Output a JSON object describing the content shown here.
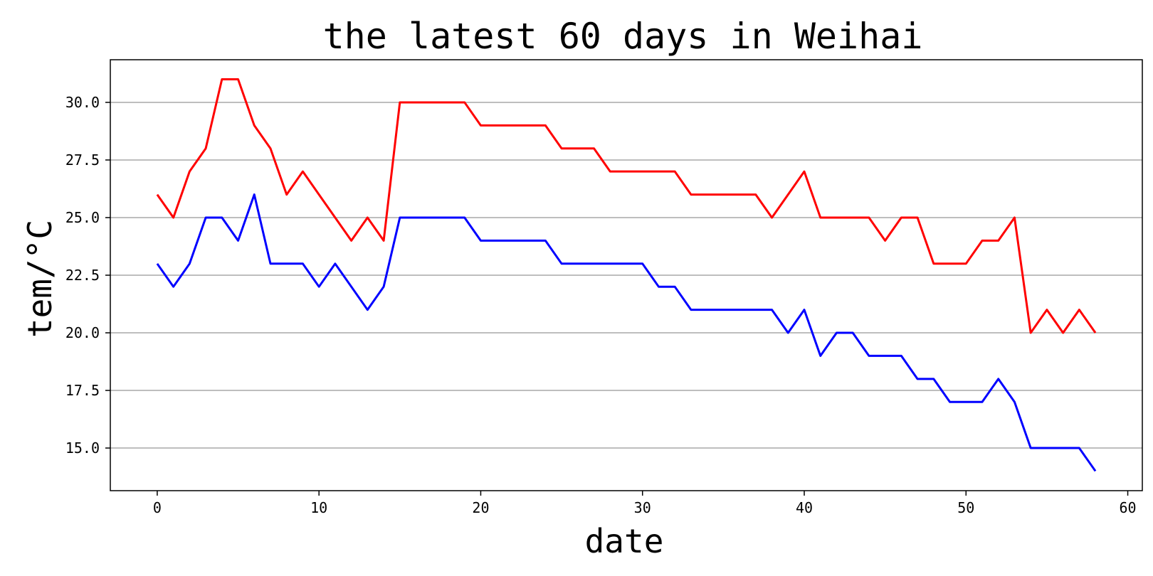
{
  "chart_data": {
    "type": "line",
    "title": "the latest 60 days in Weihai",
    "xlabel": "date",
    "ylabel": "tem/°C",
    "xlim": [
      -2.9,
      60.9
    ],
    "ylim": [
      13.15,
      31.85
    ],
    "x_ticks": [
      0,
      10,
      20,
      30,
      40,
      50,
      60
    ],
    "y_ticks": [
      15.0,
      17.5,
      20.0,
      22.5,
      25.0,
      27.5,
      30.0
    ],
    "x_tick_labels": [
      "0",
      "10",
      "20",
      "30",
      "40",
      "50",
      "60"
    ],
    "y_tick_labels": [
      "15.0",
      "17.5",
      "20.0",
      "22.5",
      "25.0",
      "27.5",
      "30.0"
    ],
    "grid": "y-major",
    "legend": "none",
    "x": [
      0,
      1,
      2,
      3,
      4,
      5,
      6,
      7,
      8,
      9,
      10,
      11,
      12,
      13,
      14,
      15,
      16,
      17,
      18,
      19,
      20,
      21,
      22,
      23,
      24,
      25,
      26,
      27,
      28,
      29,
      30,
      31,
      32,
      33,
      34,
      35,
      36,
      37,
      38,
      39,
      40,
      41,
      42,
      43,
      44,
      45,
      46,
      47,
      48,
      49,
      50,
      51,
      52,
      53,
      54,
      55,
      56,
      57,
      58
    ],
    "series": [
      {
        "color": "#ff0000",
        "values": [
          26,
          25,
          27,
          28,
          31,
          31,
          29,
          28,
          26,
          27,
          26,
          25,
          24,
          25,
          24,
          30,
          30,
          30,
          30,
          30,
          29,
          29,
          29,
          29,
          29,
          28,
          28,
          28,
          27,
          27,
          27,
          27,
          27,
          26,
          26,
          26,
          26,
          26,
          25,
          26,
          27,
          25,
          25,
          25,
          25,
          24,
          25,
          25,
          23,
          23,
          23,
          24,
          24,
          25,
          20,
          21,
          20,
          21,
          20
        ]
      },
      {
        "color": "#0000ff",
        "values": [
          23,
          22,
          23,
          25,
          25,
          24,
          26,
          23,
          23,
          23,
          22,
          23,
          22,
          21,
          22,
          25,
          25,
          25,
          25,
          25,
          24,
          24,
          24,
          24,
          24,
          23,
          23,
          23,
          23,
          23,
          23,
          22,
          22,
          21,
          21,
          21,
          21,
          21,
          21,
          20,
          21,
          19,
          20,
          20,
          19,
          19,
          19,
          18,
          18,
          17,
          17,
          17,
          18,
          17,
          15,
          15,
          15,
          15,
          14
        ]
      }
    ]
  }
}
